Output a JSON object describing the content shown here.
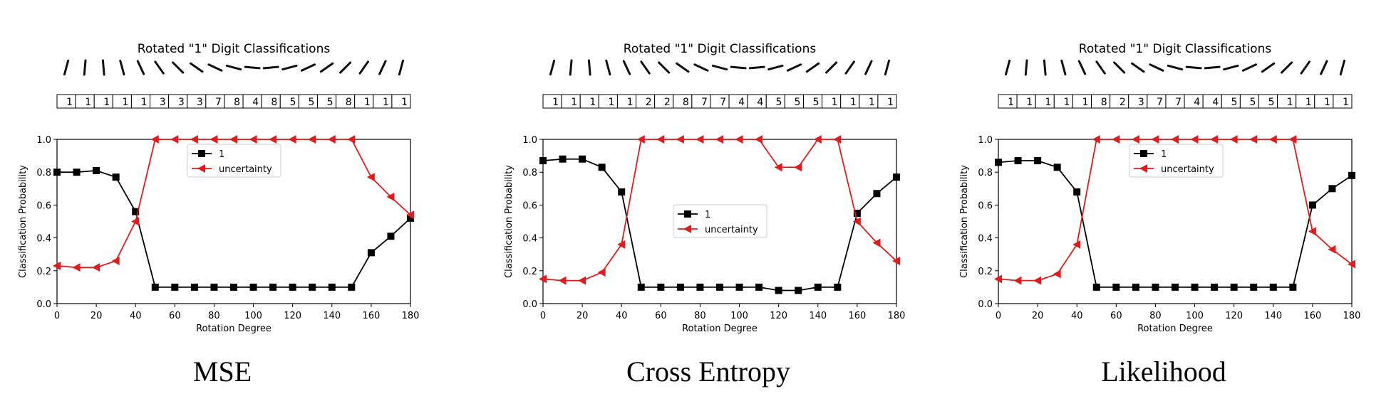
{
  "colors": {
    "class_1": "#000000",
    "uncertainty": "#e41a1c"
  },
  "chart_data": [
    {
      "type": "line",
      "caption": "MSE",
      "title": "Rotated \"1\" Digit Classifications",
      "xlabel": "Rotation Degree",
      "ylabel": "Classification Probability",
      "xlim": [
        0,
        180
      ],
      "ylim": [
        0,
        1.0
      ],
      "xticks": [
        "0",
        "20",
        "40",
        "60",
        "80",
        "100",
        "120",
        "140",
        "160",
        "180"
      ],
      "yticks": [
        "0.0",
        "0.2",
        "0.4",
        "0.6",
        "0.8",
        "1.0"
      ],
      "grid": false,
      "legend_placement": "upper-center",
      "predicted_digits": [
        "1",
        "1",
        "1",
        "1",
        "1",
        "3",
        "3",
        "3",
        "7",
        "8",
        "4",
        "8",
        "5",
        "5",
        "5",
        "8",
        "1",
        "1",
        "1"
      ],
      "x": [
        0,
        10,
        20,
        30,
        40,
        50,
        60,
        70,
        80,
        90,
        100,
        110,
        120,
        130,
        140,
        150,
        160,
        170,
        180
      ],
      "series": [
        {
          "name": "1",
          "marker": "square",
          "color": "#000000",
          "values": [
            0.8,
            0.8,
            0.81,
            0.77,
            0.56,
            0.1,
            0.1,
            0.1,
            0.1,
            0.1,
            0.1,
            0.1,
            0.1,
            0.1,
            0.1,
            0.1,
            0.31,
            0.41,
            0.52
          ]
        },
        {
          "name": "uncertainty",
          "marker": "triangle-left",
          "color": "#e41a1c",
          "values": [
            0.23,
            0.22,
            0.22,
            0.26,
            0.5,
            1.0,
            1.0,
            1.0,
            1.0,
            1.0,
            1.0,
            1.0,
            1.0,
            1.0,
            1.0,
            1.0,
            0.77,
            0.65,
            0.54
          ]
        }
      ]
    },
    {
      "type": "line",
      "caption": "Cross Entropy",
      "title": "Rotated \"1\" Digit Classifications",
      "xlabel": "Rotation Degree",
      "ylabel": "Classification Probability",
      "xlim": [
        0,
        180
      ],
      "ylim": [
        0,
        1.0
      ],
      "xticks": [
        "0",
        "20",
        "40",
        "60",
        "80",
        "100",
        "120",
        "140",
        "160",
        "180"
      ],
      "yticks": [
        "0.0",
        "0.2",
        "0.4",
        "0.6",
        "0.8",
        "1.0"
      ],
      "grid": false,
      "legend_placement": "center",
      "predicted_digits": [
        "1",
        "1",
        "1",
        "1",
        "1",
        "2",
        "2",
        "8",
        "7",
        "7",
        "4",
        "4",
        "5",
        "5",
        "5",
        "1",
        "1",
        "1",
        "1"
      ],
      "x": [
        0,
        10,
        20,
        30,
        40,
        50,
        60,
        70,
        80,
        90,
        100,
        110,
        120,
        130,
        140,
        150,
        160,
        170,
        180
      ],
      "series": [
        {
          "name": "1",
          "marker": "square",
          "color": "#000000",
          "values": [
            0.87,
            0.88,
            0.88,
            0.83,
            0.68,
            0.1,
            0.1,
            0.1,
            0.1,
            0.1,
            0.1,
            0.1,
            0.08,
            0.08,
            0.1,
            0.1,
            0.55,
            0.67,
            0.77
          ]
        },
        {
          "name": "uncertainty",
          "marker": "triangle-left",
          "color": "#e41a1c",
          "values": [
            0.15,
            0.14,
            0.14,
            0.19,
            0.36,
            1.0,
            1.0,
            1.0,
            1.0,
            1.0,
            1.0,
            1.0,
            0.83,
            0.83,
            1.0,
            1.0,
            0.5,
            0.37,
            0.26
          ]
        }
      ]
    },
    {
      "type": "line",
      "caption": "Likelihood",
      "title": "Rotated \"1\" Digit Classifications",
      "xlabel": "Rotation Degree",
      "ylabel": "Classification Probability",
      "xlim": [
        0,
        180
      ],
      "ylim": [
        0,
        1.0
      ],
      "xticks": [
        "0",
        "20",
        "40",
        "60",
        "80",
        "100",
        "120",
        "140",
        "160",
        "180"
      ],
      "yticks": [
        "0.0",
        "0.2",
        "0.4",
        "0.6",
        "0.8",
        "1.0"
      ],
      "grid": false,
      "legend_placement": "upper-center",
      "predicted_digits": [
        "1",
        "1",
        "1",
        "1",
        "1",
        "8",
        "2",
        "3",
        "7",
        "7",
        "4",
        "4",
        "5",
        "5",
        "5",
        "1",
        "1",
        "1",
        "1"
      ],
      "x": [
        0,
        10,
        20,
        30,
        40,
        50,
        60,
        70,
        80,
        90,
        100,
        110,
        120,
        130,
        140,
        150,
        160,
        170,
        180
      ],
      "series": [
        {
          "name": "1",
          "marker": "square",
          "color": "#000000",
          "values": [
            0.86,
            0.87,
            0.87,
            0.83,
            0.68,
            0.1,
            0.1,
            0.1,
            0.1,
            0.1,
            0.1,
            0.1,
            0.1,
            0.1,
            0.1,
            0.1,
            0.6,
            0.7,
            0.78
          ]
        },
        {
          "name": "uncertainty",
          "marker": "triangle-left",
          "color": "#e41a1c",
          "values": [
            0.15,
            0.14,
            0.14,
            0.18,
            0.36,
            1.0,
            1.0,
            1.0,
            1.0,
            1.0,
            1.0,
            1.0,
            1.0,
            1.0,
            1.0,
            1.0,
            0.44,
            0.33,
            0.24
          ]
        }
      ]
    }
  ]
}
